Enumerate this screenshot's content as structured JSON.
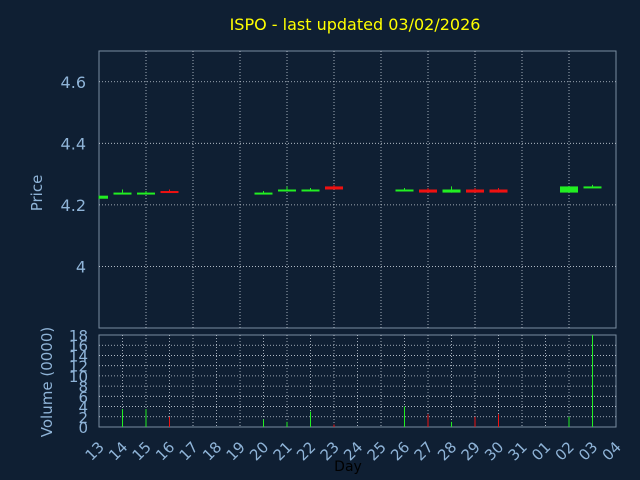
{
  "chart_data": {
    "type": "candlestick+bar",
    "title": "ISPO - last updated 03/02/2026",
    "price_panel": {
      "ylabel": "Price",
      "ylim": [
        3.8,
        4.7
      ],
      "yticks": [
        "4.6",
        "4.4",
        "4.2",
        "4"
      ],
      "grid": true
    },
    "volume_panel": {
      "ylabel": "Volume (0000)",
      "ylim": [
        0,
        18
      ],
      "yticks": [
        "0",
        "2",
        "4",
        "6",
        "8",
        "10",
        "12",
        "14",
        "16",
        "18"
      ],
      "grid": true
    },
    "xlabel": "Day",
    "x_ticks": [
      "13",
      "14",
      "15",
      "16",
      "17",
      "18",
      "19",
      "20",
      "21",
      "22",
      "23",
      "24",
      "25",
      "26",
      "27",
      "28",
      "29",
      "30",
      "31",
      "01",
      "02",
      "03",
      "04"
    ],
    "candles": [
      {
        "day": "13",
        "open": 4.22,
        "high": 4.23,
        "low": 4.22,
        "close": 4.23,
        "volume": 0.0
      },
      {
        "day": "14",
        "open": 4.24,
        "high": 4.25,
        "low": 4.24,
        "close": 4.24,
        "volume": 3.5
      },
      {
        "day": "15",
        "open": 4.24,
        "high": 4.245,
        "low": 4.235,
        "close": 4.24,
        "volume": 3.5
      },
      {
        "day": "16",
        "open": 4.245,
        "high": 4.25,
        "low": 4.24,
        "close": 4.24,
        "volume": 2.0
      },
      {
        "day": "20",
        "open": 4.24,
        "high": 4.245,
        "low": 4.235,
        "close": 4.24,
        "volume": 1.5
      },
      {
        "day": "21",
        "open": 4.25,
        "high": 4.26,
        "low": 4.245,
        "close": 4.25,
        "volume": 1.0
      },
      {
        "day": "22",
        "open": 4.25,
        "high": 4.255,
        "low": 4.245,
        "close": 4.25,
        "volume": 3.0
      },
      {
        "day": "23",
        "open": 4.26,
        "high": 4.265,
        "low": 4.25,
        "close": 4.25,
        "volume": 0.5
      },
      {
        "day": "26",
        "open": 4.25,
        "high": 4.255,
        "low": 4.245,
        "close": 4.25,
        "volume": 4.0
      },
      {
        "day": "27",
        "open": 4.25,
        "high": 4.255,
        "low": 4.24,
        "close": 4.24,
        "volume": 2.5
      },
      {
        "day": "28",
        "open": 4.24,
        "high": 4.26,
        "low": 4.24,
        "close": 4.25,
        "volume": 1.0
      },
      {
        "day": "29",
        "open": 4.25,
        "high": 4.255,
        "low": 4.24,
        "close": 4.24,
        "volume": 2.0
      },
      {
        "day": "30",
        "open": 4.25,
        "high": 4.255,
        "low": 4.24,
        "close": 4.24,
        "volume": 2.5
      },
      {
        "day": "02",
        "open": 4.24,
        "high": 4.26,
        "low": 4.24,
        "close": 4.26,
        "volume": 2.0
      },
      {
        "day": "03",
        "open": 4.26,
        "high": 4.265,
        "low": 4.255,
        "close": 4.26,
        "volume": 18.0
      }
    ]
  },
  "colors": {
    "background": "#0f1f33",
    "axis": "#7a8ca0",
    "grid": "#c8d0da",
    "title": "#ffff00",
    "label": "#8fb4d8",
    "up": "#22ee22",
    "down": "#ee1111"
  }
}
